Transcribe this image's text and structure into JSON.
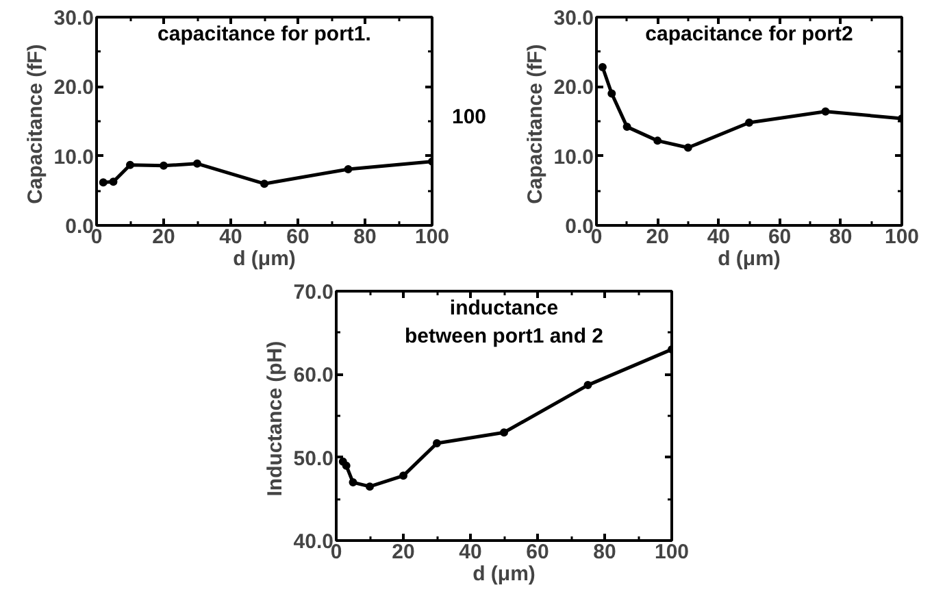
{
  "chart_data": [
    {
      "type": "line",
      "title": "capacitance for port1.",
      "xlabel": "d (μm)",
      "ylabel": "Capacitance  (fF)",
      "x": [
        2,
        5,
        10,
        20,
        30,
        50,
        75,
        100
      ],
      "series": [
        {
          "color": "#000000",
          "values": [
            6.2,
            6.3,
            8.7,
            8.6,
            8.9,
            6.0,
            8.1,
            9.2
          ]
        }
      ],
      "xlim": [
        0,
        100
      ],
      "ylim": [
        0,
        30
      ],
      "xticks": [
        0,
        20,
        40,
        60,
        80,
        100
      ],
      "yticks": [
        {
          "value": 0,
          "label": "0.0"
        },
        {
          "value": 10,
          "label": "10.0"
        },
        {
          "value": 20,
          "label": "20.0"
        },
        {
          "value": 30,
          "label": "30.0"
        }
      ],
      "marker": "circle",
      "line_style": "solid"
    },
    {
      "type": "line",
      "title": "capacitance for port2",
      "xlabel": "d (μm)",
      "ylabel": "Capacitance  (fF)",
      "x": [
        2,
        5,
        10,
        20,
        30,
        50,
        75,
        100
      ],
      "series": [
        {
          "color": "#000000",
          "values": [
            22.8,
            19.0,
            14.2,
            12.2,
            11.2,
            14.8,
            16.4,
            15.4
          ]
        }
      ],
      "xlim": [
        0,
        100
      ],
      "ylim": [
        0,
        30
      ],
      "xticks": [
        0,
        20,
        40,
        60,
        80,
        100
      ],
      "yticks": [
        {
          "value": 0,
          "label": "0.0"
        },
        {
          "value": 10,
          "label": "10.0"
        },
        {
          "value": 20,
          "label": "20.0"
        },
        {
          "value": 30,
          "label": "30.0"
        }
      ],
      "marker": "circle",
      "line_style": "solid",
      "annotations": [
        "100"
      ]
    },
    {
      "type": "line",
      "title": "inductance\nbetween port1 and 2",
      "xlabel": "d (μm)",
      "ylabel": "Inductance  (pH)",
      "x": [
        2,
        3,
        5,
        10,
        20,
        30,
        50,
        75,
        100
      ],
      "series": [
        {
          "color": "#000000",
          "values": [
            49.5,
            49.0,
            47.0,
            46.5,
            47.8,
            51.7,
            53.0,
            58.7,
            63.0
          ]
        }
      ],
      "xlim": [
        0,
        100
      ],
      "ylim": [
        40,
        70
      ],
      "xticks": [
        0,
        20,
        40,
        60,
        80,
        100
      ],
      "yticks": [
        {
          "value": 40,
          "label": "40.0"
        },
        {
          "value": 50,
          "label": "50.0"
        },
        {
          "value": 60,
          "label": "60.0"
        },
        {
          "value": 70,
          "label": "70.0"
        }
      ],
      "marker": "circle",
      "line_style": "solid"
    }
  ]
}
